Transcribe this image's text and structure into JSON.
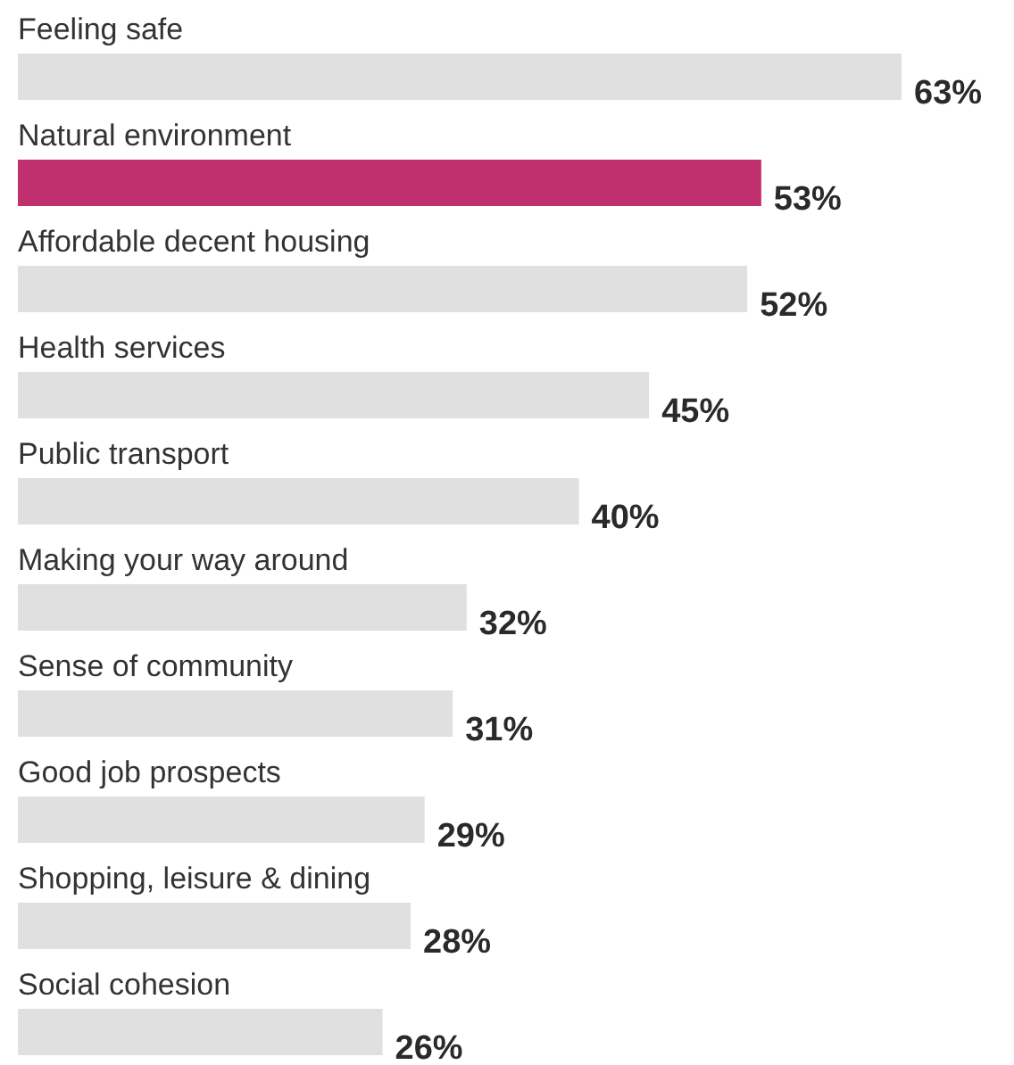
{
  "chart_data": {
    "type": "bar",
    "orientation": "horizontal",
    "categories": [
      "Feeling safe",
      "Natural environment",
      "Affordable decent housing",
      "Health services",
      "Public transport",
      "Making your way around",
      "Sense of community",
      "Good job prospects",
      "Shopping, leisure & dining",
      "Social cohesion"
    ],
    "values": [
      63,
      53,
      52,
      45,
      40,
      32,
      31,
      29,
      28,
      26
    ],
    "value_labels": [
      "63%",
      "53%",
      "52%",
      "45%",
      "40%",
      "32%",
      "31%",
      "29%",
      "28%",
      "26%"
    ],
    "colors": [
      "#e0e0e0",
      "#c0306e",
      "#e0e0e0",
      "#e0e0e0",
      "#e0e0e0",
      "#e0e0e0",
      "#e0e0e0",
      "#e0e0e0",
      "#e0e0e0",
      "#e0e0e0"
    ]
  }
}
